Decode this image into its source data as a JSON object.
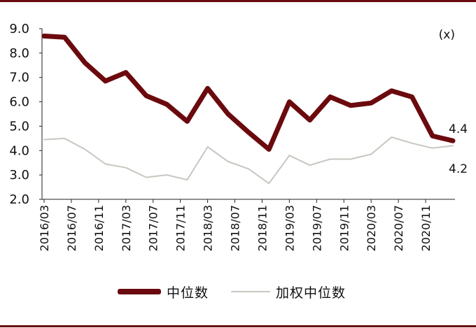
{
  "chart_data": {
    "type": "line",
    "unit_label": "(x)",
    "ylim": [
      2.0,
      9.0
    ],
    "yticks": [
      "2.0",
      "3.0",
      "4.0",
      "5.0",
      "6.0",
      "7.0",
      "8.0",
      "9.0"
    ],
    "x": [
      "2016/03",
      "2016/06",
      "2016/09",
      "2016/12",
      "2017/03",
      "2017/06",
      "2017/09",
      "2017/12",
      "2018/03",
      "2018/06",
      "2018/09",
      "2018/12",
      "2019/03",
      "2019/06",
      "2019/09",
      "2019/12",
      "2020/03",
      "2020/06",
      "2020/09",
      "2020/12",
      "2021/01"
    ],
    "xticks": [
      "2016/03",
      "2016/07",
      "2016/11",
      "2017/03",
      "2017/07",
      "2017/11",
      "2018/03",
      "2018/07",
      "2018/11",
      "2019/03",
      "2019/07",
      "2019/11",
      "2020/03",
      "2020/07",
      "2020/11"
    ],
    "series": [
      {
        "name": "中位数",
        "color": "#6b0a0e",
        "values": [
          8.7,
          8.65,
          7.6,
          6.85,
          7.2,
          6.25,
          5.9,
          5.2,
          6.55,
          5.5,
          4.75,
          4.05,
          6.0,
          5.25,
          6.2,
          5.85,
          5.95,
          6.45,
          6.2,
          4.6,
          4.4
        ],
        "end_label": "4.4"
      },
      {
        "name": "加权中位数",
        "color": "#c8c6c0",
        "values": [
          4.45,
          4.5,
          4.05,
          3.45,
          3.3,
          2.9,
          3.0,
          2.8,
          4.15,
          3.55,
          3.25,
          2.65,
          3.8,
          3.4,
          3.65,
          3.65,
          3.85,
          4.55,
          4.3,
          4.1,
          4.2
        ],
        "end_label": "4.2"
      }
    ],
    "grid": false,
    "legend": "bottom-center"
  }
}
